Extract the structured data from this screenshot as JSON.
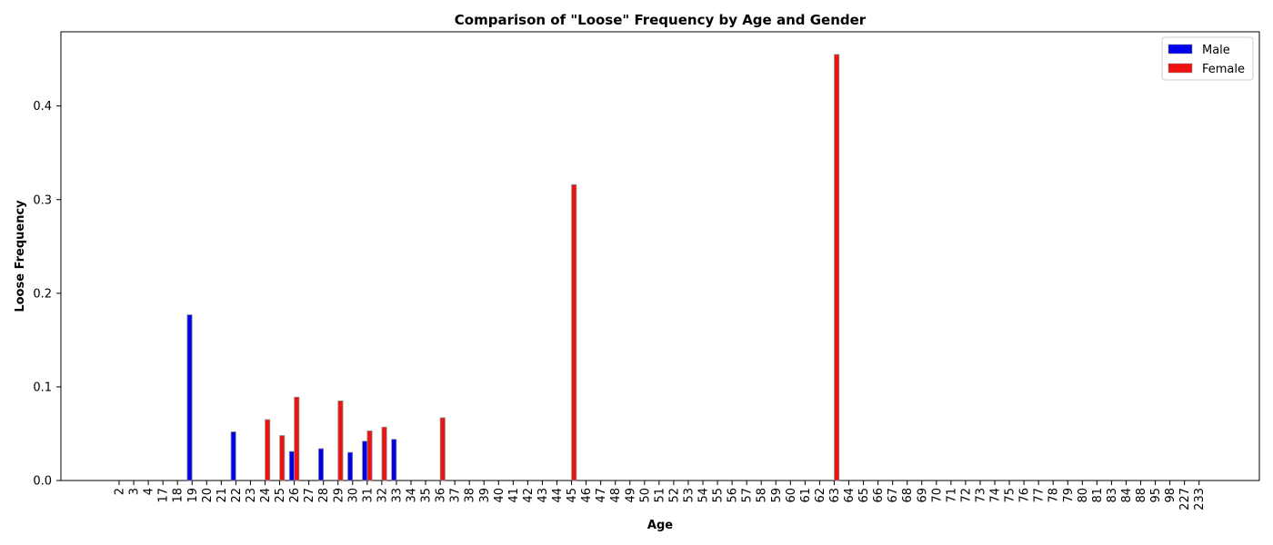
{
  "chart_data": {
    "type": "bar",
    "title": "Comparison of \"Loose\" Frequency by Age and Gender",
    "xlabel": "Age",
    "ylabel": "Loose Frequency",
    "ylim": [
      0,
      0.475
    ],
    "yticks": [
      "0.0",
      "0.1",
      "0.2",
      "0.3",
      "0.4"
    ],
    "grid": false,
    "legend_position": "top-right",
    "categories": [
      "2",
      "3",
      "4",
      "17",
      "18",
      "19",
      "20",
      "21",
      "22",
      "23",
      "24",
      "25",
      "26",
      "27",
      "28",
      "29",
      "30",
      "31",
      "32",
      "33",
      "34",
      "35",
      "36",
      "37",
      "38",
      "39",
      "40",
      "41",
      "42",
      "43",
      "44",
      "45",
      "46",
      "47",
      "48",
      "49",
      "50",
      "51",
      "52",
      "53",
      "54",
      "55",
      "56",
      "57",
      "58",
      "59",
      "60",
      "61",
      "62",
      "63",
      "64",
      "65",
      "66",
      "67",
      "68",
      "69",
      "70",
      "71",
      "72",
      "73",
      "74",
      "75",
      "76",
      "77",
      "78",
      "79",
      "80",
      "81",
      "83",
      "84",
      "88",
      "95",
      "98",
      "227",
      "233"
    ],
    "series": [
      {
        "name": "Male",
        "color": "#0000ee",
        "values": [
          0,
          0,
          0,
          0,
          0,
          0.177,
          0,
          0,
          0.052,
          0,
          0,
          0,
          0.031,
          0,
          0.034,
          0,
          0.03,
          0.042,
          0,
          0.044,
          0,
          0,
          0,
          0,
          0,
          0,
          0,
          0,
          0,
          0,
          0,
          0,
          0,
          0,
          0,
          0,
          0,
          0,
          0,
          0,
          0,
          0,
          0,
          0,
          0,
          0,
          0,
          0,
          0,
          0,
          0,
          0,
          0,
          0,
          0,
          0,
          0,
          0,
          0,
          0,
          0,
          0,
          0,
          0,
          0,
          0,
          0,
          0,
          0,
          0,
          0,
          0,
          0,
          0,
          0
        ]
      },
      {
        "name": "Female",
        "color": "#ee1111",
        "values": [
          0,
          0,
          0,
          0,
          0,
          0,
          0,
          0,
          0,
          0,
          0.065,
          0.048,
          0.089,
          0,
          0,
          0.085,
          0,
          0.053,
          0.057,
          0,
          0,
          0,
          0.067,
          0,
          0,
          0,
          0,
          0,
          0,
          0,
          0,
          0.316,
          0,
          0,
          0,
          0,
          0,
          0,
          0,
          0,
          0,
          0,
          0,
          0,
          0,
          0,
          0,
          0,
          0,
          0.455,
          0,
          0,
          0,
          0,
          0,
          0,
          0,
          0,
          0,
          0,
          0,
          0,
          0,
          0,
          0,
          0,
          0,
          0,
          0,
          0,
          0,
          0,
          0,
          0,
          0
        ]
      }
    ]
  }
}
